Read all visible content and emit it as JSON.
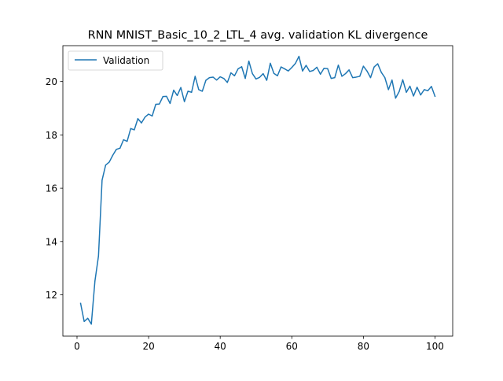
{
  "chart_data": {
    "type": "line",
    "title": "RNN MNIST_Basic_10_2_LTL_4 avg. validation KL divergence",
    "xlabel": "",
    "ylabel": "",
    "xlim": [
      -3.95,
      104.95
    ],
    "ylim": [
      10.45,
      21.35
    ],
    "xticks": [
      0,
      20,
      40,
      60,
      80,
      100
    ],
    "yticks": [
      12,
      14,
      16,
      18,
      20
    ],
    "grid": false,
    "legend_position": "upper-left",
    "series": [
      {
        "name": "Validation",
        "color": "#1f77b4",
        "x": [
          1,
          2,
          3,
          4,
          5,
          6,
          7,
          8,
          9,
          10,
          11,
          12,
          13,
          14,
          15,
          16,
          17,
          18,
          19,
          20,
          21,
          22,
          23,
          24,
          25,
          26,
          27,
          28,
          29,
          30,
          31,
          32,
          33,
          34,
          35,
          36,
          37,
          38,
          39,
          40,
          41,
          42,
          43,
          44,
          45,
          46,
          47,
          48,
          49,
          50,
          51,
          52,
          53,
          54,
          55,
          56,
          57,
          58,
          59,
          60,
          61,
          62,
          63,
          64,
          65,
          66,
          67,
          68,
          69,
          70,
          71,
          72,
          73,
          74,
          75,
          76,
          77,
          78,
          79,
          80,
          81,
          82,
          83,
          84,
          85,
          86,
          87,
          88,
          89,
          90,
          91,
          92,
          93,
          94,
          95,
          96,
          97,
          98,
          99,
          100
        ],
        "values": [
          11.68,
          11.0,
          11.12,
          10.9,
          12.51,
          13.46,
          16.3,
          16.87,
          16.98,
          17.24,
          17.46,
          17.5,
          17.82,
          17.76,
          18.24,
          18.19,
          18.61,
          18.45,
          18.67,
          18.78,
          18.71,
          19.15,
          19.16,
          19.44,
          19.45,
          19.18,
          19.68,
          19.48,
          19.78,
          19.25,
          19.64,
          19.6,
          20.2,
          19.7,
          19.64,
          20.05,
          20.15,
          20.17,
          20.06,
          20.18,
          20.12,
          19.97,
          20.33,
          20.22,
          20.48,
          20.56,
          20.12,
          20.77,
          20.3,
          20.1,
          20.16,
          20.3,
          20.05,
          20.69,
          20.31,
          20.22,
          20.55,
          20.48,
          20.4,
          20.53,
          20.68,
          20.95,
          20.4,
          20.61,
          20.38,
          20.42,
          20.54,
          20.28,
          20.5,
          20.49,
          20.12,
          20.15,
          20.62,
          20.2,
          20.3,
          20.44,
          20.15,
          20.17,
          20.2,
          20.58,
          20.4,
          20.15,
          20.55,
          20.67,
          20.35,
          20.15,
          19.7,
          20.06,
          19.38,
          19.63,
          20.07,
          19.6,
          19.83,
          19.46,
          19.79,
          19.5,
          19.7,
          19.66,
          19.82,
          19.45
        ]
      }
    ]
  }
}
